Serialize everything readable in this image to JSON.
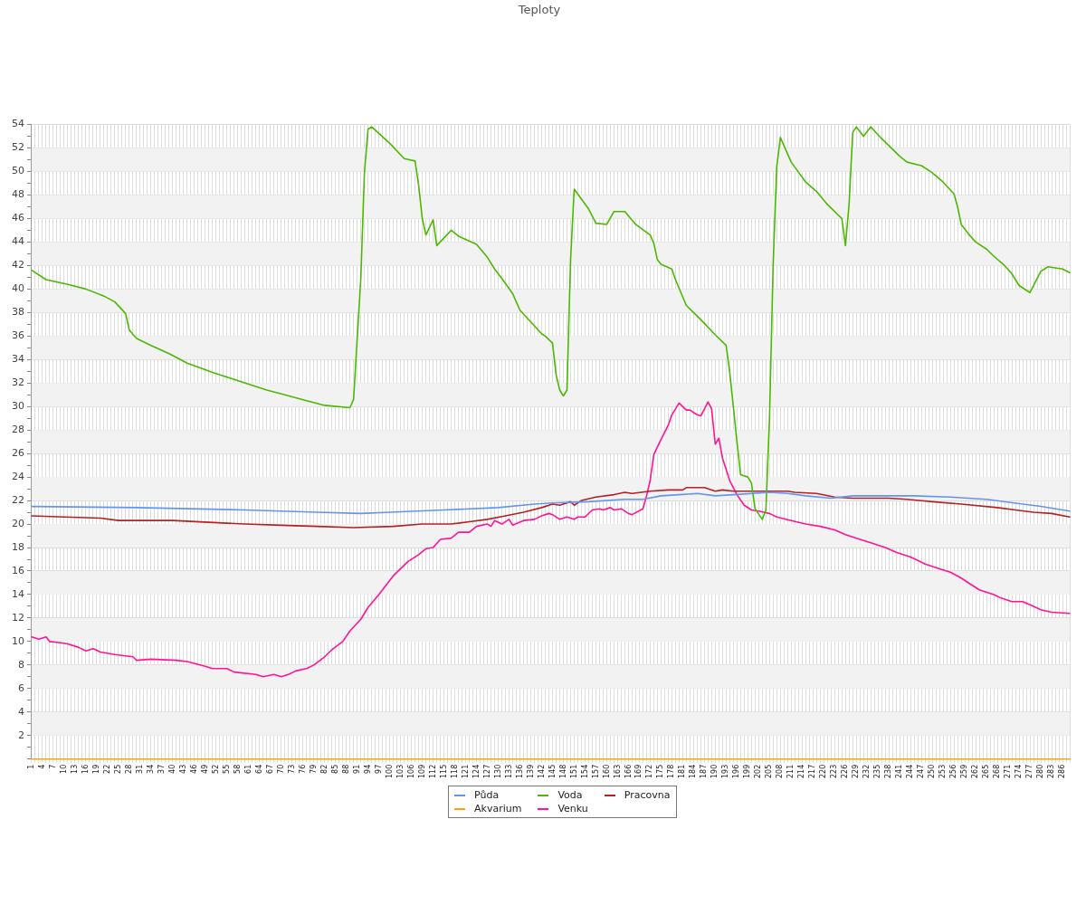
{
  "chart_data": {
    "type": "line",
    "title": "Teploty",
    "marker": "none",
    "grid": true,
    "legend": "bottom",
    "xlim": [
      1,
      288
    ],
    "xticks": [
      1,
      {
        "value": 2,
        "label": null
      },
      {
        "value": 3,
        "label": null
      },
      4,
      {
        "value": 5,
        "label": null
      },
      {
        "value": 6,
        "label": null
      },
      7,
      {
        "value": 8,
        "label": null
      },
      {
        "value": 9,
        "label": null
      },
      10,
      {
        "value": 11,
        "label": null
      },
      {
        "value": 12,
        "label": null
      },
      13,
      {
        "value": 14,
        "label": null
      },
      {
        "value": 15,
        "label": null
      },
      16,
      {
        "value": 17,
        "label": null
      },
      {
        "value": 18,
        "label": null
      },
      19,
      {
        "value": 20,
        "label": null
      },
      {
        "value": 21,
        "label": null
      },
      22,
      {
        "value": 23,
        "label": null
      },
      {
        "value": 24,
        "label": null
      },
      25,
      {
        "value": 26,
        "label": null
      },
      {
        "value": 27,
        "label": null
      },
      28,
      {
        "value": 29,
        "label": null
      },
      {
        "value": 30,
        "label": null
      },
      31,
      {
        "value": 32,
        "label": null
      },
      {
        "value": 33,
        "label": null
      },
      34,
      {
        "value": 35,
        "label": null
      },
      {
        "value": 36,
        "label": null
      },
      37,
      {
        "value": 38,
        "label": null
      },
      {
        "value": 39,
        "label": null
      },
      40,
      {
        "value": 41,
        "label": null
      },
      {
        "value": 42,
        "label": null
      },
      43,
      {
        "value": 44,
        "label": null
      },
      {
        "value": 45,
        "label": null
      },
      46,
      {
        "value": 47,
        "label": null
      },
      {
        "value": 48,
        "label": null
      },
      49,
      {
        "value": 50,
        "label": null
      },
      {
        "value": 51,
        "label": null
      },
      52,
      {
        "value": 53,
        "label": null
      },
      {
        "value": 54,
        "label": null
      },
      55,
      {
        "value": 56,
        "label": null
      },
      {
        "value": 57,
        "label": null
      },
      58,
      {
        "value": 59,
        "label": null
      },
      {
        "value": 60,
        "label": null
      },
      61,
      {
        "value": 62,
        "label": null
      },
      {
        "value": 63,
        "label": null
      },
      64,
      {
        "value": 65,
        "label": null
      },
      {
        "value": 66,
        "label": null
      },
      67,
      {
        "value": 68,
        "label": null
      },
      {
        "value": 69,
        "label": null
      },
      70,
      {
        "value": 71,
        "label": null
      },
      {
        "value": 72,
        "label": null
      },
      73,
      {
        "value": 74,
        "label": null
      },
      {
        "value": 75,
        "label": null
      },
      76,
      {
        "value": 77,
        "label": null
      },
      {
        "value": 78,
        "label": null
      },
      79,
      {
        "value": 80,
        "label": null
      },
      {
        "value": 81,
        "label": null
      },
      82,
      {
        "value": 83,
        "label": null
      },
      {
        "value": 84,
        "label": null
      },
      85,
      {
        "value": 86,
        "label": null
      },
      {
        "value": 87,
        "label": null
      },
      88,
      {
        "value": 89,
        "label": null
      },
      {
        "value": 90,
        "label": null
      },
      91,
      {
        "value": 92,
        "label": null
      },
      {
        "value": 93,
        "label": null
      },
      94,
      {
        "value": 95,
        "label": null
      },
      {
        "value": 96,
        "label": null
      },
      97,
      {
        "value": 98,
        "label": null
      },
      {
        "value": 99,
        "label": null
      },
      100,
      {
        "value": 101,
        "label": null
      },
      {
        "value": 102,
        "label": null
      },
      103,
      {
        "value": 104,
        "label": null
      },
      {
        "value": 105,
        "label": null
      },
      106,
      {
        "value": 107,
        "label": null
      },
      {
        "value": 108,
        "label": null
      },
      109,
      {
        "value": 110,
        "label": null
      },
      {
        "value": 111,
        "label": null
      },
      112,
      {
        "value": 113,
        "label": null
      },
      {
        "value": 114,
        "label": null
      },
      115,
      {
        "value": 116,
        "label": null
      },
      {
        "value": 117,
        "label": null
      },
      118,
      {
        "value": 119,
        "label": null
      },
      {
        "value": 120,
        "label": null
      },
      121,
      {
        "value": 122,
        "label": null
      },
      {
        "value": 123,
        "label": null
      },
      124,
      {
        "value": 125,
        "label": null
      },
      {
        "value": 126,
        "label": null
      },
      127,
      {
        "value": 128,
        "label": null
      },
      {
        "value": 129,
        "label": null
      },
      130,
      {
        "value": 131,
        "label": null
      },
      {
        "value": 132,
        "label": null
      },
      133,
      {
        "value": 134,
        "label": null
      },
      {
        "value": 135,
        "label": null
      },
      136,
      {
        "value": 137,
        "label": null
      },
      {
        "value": 138,
        "label": null
      },
      139,
      {
        "value": 140,
        "label": null
      },
      {
        "value": 141,
        "label": null
      },
      142,
      {
        "value": 143,
        "label": null
      },
      {
        "value": 144,
        "label": null
      },
      145,
      {
        "value": 146,
        "label": null
      },
      {
        "value": 147,
        "label": null
      },
      148,
      {
        "value": 149,
        "label": null
      },
      {
        "value": 150,
        "label": null
      },
      151,
      {
        "value": 152,
        "label": null
      },
      {
        "value": 153,
        "label": null
      },
      154,
      {
        "value": 155,
        "label": null
      },
      {
        "value": 156,
        "label": null
      },
      157,
      {
        "value": 158,
        "label": null
      },
      {
        "value": 159,
        "label": null
      },
      160,
      {
        "value": 161,
        "label": null
      },
      {
        "value": 162,
        "label": null
      },
      163,
      {
        "value": 164,
        "label": null
      },
      {
        "value": 165,
        "label": null
      },
      166,
      {
        "value": 167,
        "label": null
      },
      {
        "value": 168,
        "label": null
      },
      169,
      {
        "value": 170,
        "label": null
      },
      {
        "value": 171,
        "label": null
      },
      172,
      {
        "value": 173,
        "label": null
      },
      {
        "value": 174,
        "label": null
      },
      175,
      {
        "value": 176,
        "label": null
      },
      {
        "value": 177,
        "label": null
      },
      178,
      {
        "value": 179,
        "label": null
      },
      {
        "value": 180,
        "label": null
      },
      181,
      {
        "value": 182,
        "label": null
      },
      {
        "value": 183,
        "label": null
      },
      184,
      {
        "value": 185,
        "label": null
      },
      {
        "value": 186,
        "label": null
      },
      187,
      {
        "value": 188,
        "label": null
      },
      {
        "value": 189,
        "label": null
      },
      190,
      {
        "value": 191,
        "label": null
      },
      {
        "value": 192,
        "label": null
      },
      193,
      {
        "value": 194,
        "label": null
      },
      {
        "value": 195,
        "label": null
      },
      196,
      {
        "value": 197,
        "label": null
      },
      {
        "value": 198,
        "label": null
      },
      199,
      {
        "value": 200,
        "label": null
      },
      {
        "value": 201,
        "label": null
      },
      202,
      {
        "value": 203,
        "label": null
      },
      {
        "value": 204,
        "label": null
      },
      205,
      {
        "value": 206,
        "label": null
      },
      {
        "value": 207,
        "label": null
      },
      208,
      {
        "value": 209,
        "label": null
      },
      {
        "value": 210,
        "label": null
      },
      211,
      {
        "value": 212,
        "label": null
      },
      {
        "value": 213,
        "label": null
      },
      214,
      {
        "value": 215,
        "label": null
      },
      {
        "value": 216,
        "label": null
      },
      217,
      {
        "value": 218,
        "label": null
      },
      {
        "value": 219,
        "label": null
      },
      220,
      {
        "value": 221,
        "label": null
      },
      {
        "value": 222,
        "label": null
      },
      223,
      {
        "value": 224,
        "label": null
      },
      {
        "value": 225,
        "label": null
      },
      226,
      {
        "value": 227,
        "label": null
      },
      {
        "value": 228,
        "label": null
      },
      229,
      {
        "value": 230,
        "label": null
      },
      {
        "value": 231,
        "label": null
      },
      232,
      {
        "value": 233,
        "label": null
      },
      {
        "value": 234,
        "label": null
      },
      235,
      {
        "value": 236,
        "label": null
      },
      {
        "value": 237,
        "label": null
      },
      238,
      {
        "value": 239,
        "label": null
      },
      {
        "value": 240,
        "label": null
      },
      241,
      {
        "value": 242,
        "label": null
      },
      {
        "value": 243,
        "label": null
      },
      244,
      {
        "value": 245,
        "label": null
      },
      {
        "value": 246,
        "label": null
      },
      247,
      {
        "value": 248,
        "label": null
      },
      {
        "value": 249,
        "label": null
      },
      250,
      {
        "value": 251,
        "label": null
      },
      {
        "value": 252,
        "label": null
      },
      253,
      {
        "value": 254,
        "label": null
      },
      {
        "value": 255,
        "label": null
      },
      256,
      {
        "value": 257,
        "label": null
      },
      {
        "value": 258,
        "label": null
      },
      259,
      {
        "value": 260,
        "label": null
      },
      {
        "value": 261,
        "label": null
      },
      262,
      {
        "value": 263,
        "label": null
      },
      {
        "value": 264,
        "label": null
      },
      265,
      {
        "value": 266,
        "label": null
      },
      {
        "value": 267,
        "label": null
      },
      268,
      {
        "value": 269,
        "label": null
      },
      {
        "value": 270,
        "label": null
      },
      271,
      {
        "value": 272,
        "label": null
      },
      {
        "value": 273,
        "label": null
      },
      274,
      {
        "value": 275,
        "label": null
      },
      {
        "value": 276,
        "label": null
      },
      277,
      {
        "value": 278,
        "label": null
      },
      {
        "value": 279,
        "label": null
      },
      280,
      {
        "value": 281,
        "label": null
      },
      {
        "value": 282,
        "label": null
      },
      283,
      {
        "value": 284,
        "label": null
      },
      {
        "value": 285,
        "label": null
      },
      286,
      {
        "value": 287,
        "label": null
      },
      {
        "value": 288,
        "label": null
      }
    ],
    "ylim": [
      0,
      54
    ],
    "yticks": [
      {
        "value": 0,
        "label": null
      },
      {
        "value": 1,
        "label": null
      },
      2,
      {
        "value": 3,
        "label": null
      },
      4,
      {
        "value": 5,
        "label": null
      },
      6,
      {
        "value": 7,
        "label": null
      },
      8,
      {
        "value": 9,
        "label": null
      },
      10,
      {
        "value": 11,
        "label": null
      },
      12,
      {
        "value": 13,
        "label": null
      },
      14,
      {
        "value": 15,
        "label": null
      },
      16,
      {
        "value": 17,
        "label": null
      },
      18,
      {
        "value": 19,
        "label": null
      },
      20,
      {
        "value": 21,
        "label": null
      },
      22,
      {
        "value": 23,
        "label": null
      },
      24,
      {
        "value": 25,
        "label": null
      },
      26,
      {
        "value": 27,
        "label": null
      },
      28,
      {
        "value": 29,
        "label": null
      },
      30,
      {
        "value": 31,
        "label": null
      },
      32,
      {
        "value": 33,
        "label": null
      },
      34,
      {
        "value": 35,
        "label": null
      },
      36,
      {
        "value": 37,
        "label": null
      },
      38,
      {
        "value": 39,
        "label": null
      },
      40,
      {
        "value": 41,
        "label": null
      },
      42,
      {
        "value": 43,
        "label": null
      },
      44,
      {
        "value": 45,
        "label": null
      },
      46,
      {
        "value": 47,
        "label": null
      },
      48,
      {
        "value": 49,
        "label": null
      },
      50,
      {
        "value": 51,
        "label": null
      },
      52,
      {
        "value": 53,
        "label": null
      },
      54
    ],
    "series": [
      {
        "name": "Půda",
        "color": "#6495ed",
        "x": [
          1,
          30,
          60,
          70,
          80,
          92,
          100,
          115,
          130,
          140,
          145,
          155,
          165,
          170,
          175,
          180,
          185,
          190,
          195,
          205,
          210,
          215,
          222,
          228,
          245,
          255,
          265,
          275,
          280,
          288
        ],
        "values": [
          21.5,
          21.4,
          21.2,
          21.1,
          21.0,
          20.9,
          21.0,
          21.2,
          21.4,
          21.7,
          21.8,
          21.9,
          22.1,
          22.1,
          22.4,
          22.5,
          22.6,
          22.4,
          22.5,
          22.7,
          22.6,
          22.4,
          22.2,
          22.4,
          22.4,
          22.3,
          22.1,
          21.7,
          21.5,
          21.1
        ]
      },
      {
        "name": "Voda",
        "color": "#4cb800",
        "x": [
          1,
          5,
          11,
          16,
          21,
          24,
          27,
          28,
          30,
          34,
          39,
          44,
          51,
          56,
          61,
          66,
          71,
          77,
          82,
          89,
          90,
          92,
          93,
          94,
          95,
          100,
          104,
          107,
          108,
          109,
          110,
          112,
          113,
          117,
          119,
          124,
          127,
          129,
          131,
          134,
          136,
          139,
          142,
          143,
          145,
          146,
          147,
          148,
          149,
          150,
          151,
          155,
          157,
          160,
          162,
          165,
          168,
          172,
          173,
          174,
          175,
          178,
          179,
          182,
          186,
          190,
          193,
          194,
          195,
          196,
          197,
          199,
          200,
          201,
          203,
          204,
          205,
          206,
          207,
          208,
          211,
          215,
          218,
          221,
          225,
          226,
          227,
          228,
          229,
          231,
          233,
          236,
          241,
          243,
          247,
          250,
          253,
          256,
          257,
          258,
          260,
          262,
          265,
          267,
          270,
          272,
          274,
          277,
          280,
          282,
          286,
          288
        ],
        "values": [
          41.6,
          40.8,
          40.4,
          40.0,
          39.4,
          38.9,
          37.9,
          36.5,
          35.8,
          35.2,
          34.5,
          33.7,
          32.9,
          32.4,
          31.9,
          31.4,
          31.0,
          30.5,
          30.1,
          29.9,
          30.6,
          40.9,
          49.9,
          53.6,
          53.8,
          52.4,
          51.1,
          50.9,
          48.8,
          46.0,
          44.6,
          45.9,
          43.7,
          45.0,
          44.5,
          43.8,
          42.7,
          41.7,
          40.9,
          39.6,
          38.2,
          37.2,
          36.2,
          36.0,
          35.4,
          32.7,
          31.4,
          30.9,
          31.4,
          42.5,
          48.5,
          46.8,
          45.6,
          45.5,
          46.6,
          46.6,
          45.5,
          44.6,
          43.9,
          42.5,
          42.1,
          41.7,
          40.8,
          38.6,
          37.4,
          36.1,
          35.2,
          32.9,
          30.0,
          27.0,
          24.2,
          24.0,
          23.5,
          21.3,
          20.4,
          21.2,
          29.0,
          42.0,
          50.4,
          52.9,
          50.8,
          49.1,
          48.3,
          47.2,
          46.0,
          43.7,
          47.2,
          53.3,
          53.8,
          53.0,
          53.8,
          52.8,
          51.3,
          50.8,
          50.5,
          49.9,
          49.1,
          48.1,
          47.0,
          45.5,
          44.7,
          44.0,
          43.4,
          42.8,
          42.0,
          41.3,
          40.3,
          39.7,
          41.5,
          41.9,
          41.7,
          41.4
        ]
      },
      {
        "name": "Pracovna",
        "color": "#b22222",
        "x": [
          1,
          10,
          20,
          25,
          40,
          60,
          70,
          80,
          90,
          101,
          109,
          117,
          122,
          127,
          132,
          137,
          142,
          145,
          147,
          150,
          151,
          153,
          157,
          162,
          165,
          167,
          172,
          177,
          181,
          182,
          187,
          190,
          192,
          195,
          205,
          210,
          212,
          218,
          223,
          228,
          238,
          243,
          250,
          258,
          268,
          273,
          278,
          283,
          288
        ],
        "values": [
          20.7,
          20.6,
          20.5,
          20.3,
          20.3,
          20.0,
          19.9,
          19.8,
          19.7,
          19.8,
          20.0,
          20.0,
          20.2,
          20.4,
          20.7,
          21.0,
          21.4,
          21.7,
          21.6,
          21.9,
          21.6,
          22.0,
          22.3,
          22.5,
          22.7,
          22.6,
          22.8,
          22.9,
          22.9,
          23.1,
          23.1,
          22.8,
          22.9,
          22.8,
          22.8,
          22.8,
          22.7,
          22.6,
          22.3,
          22.2,
          22.2,
          22.1,
          21.9,
          21.7,
          21.4,
          21.2,
          21.0,
          20.9,
          20.6
        ]
      },
      {
        "name": "Akvarium",
        "color": "#ffa500",
        "x": [
          1,
          288
        ],
        "values": [
          0,
          0
        ]
      },
      {
        "name": "Venku",
        "color": "#ff1493",
        "x": [
          1,
          3,
          5,
          6,
          9,
          11,
          14,
          16,
          18,
          20,
          24,
          29,
          30,
          34,
          41,
          44,
          49,
          51,
          55,
          57,
          63,
          65,
          68,
          70,
          72,
          74,
          77,
          79,
          82,
          84,
          87,
          89,
          92,
          94,
          97,
          99,
          101,
          103,
          105,
          108,
          110,
          112,
          114,
          117,
          119,
          122,
          124,
          127,
          128,
          129,
          131,
          133,
          134,
          137,
          140,
          142,
          144,
          145,
          147,
          149,
          151,
          152,
          154,
          156,
          158,
          159,
          161,
          162,
          164,
          166,
          167,
          170,
          171,
          172,
          173,
          175,
          177,
          178,
          180,
          182,
          183,
          184,
          185,
          186,
          187,
          188,
          189,
          190,
          191,
          192,
          194,
          196,
          198,
          200,
          202,
          205,
          207,
          211,
          215,
          219,
          223,
          226,
          230,
          233,
          237,
          240,
          244,
          248,
          252,
          255,
          258,
          260,
          263,
          267,
          269,
          272,
          275,
          278,
          280,
          283,
          288
        ],
        "values": [
          10.4,
          10.2,
          10.4,
          10.0,
          9.9,
          9.8,
          9.5,
          9.2,
          9.4,
          9.1,
          8.9,
          8.7,
          8.4,
          8.5,
          8.4,
          8.3,
          7.9,
          7.7,
          7.7,
          7.4,
          7.2,
          7.0,
          7.2,
          7.0,
          7.2,
          7.5,
          7.7,
          8.0,
          8.7,
          9.3,
          10.0,
          10.9,
          11.9,
          12.9,
          14.0,
          14.8,
          15.6,
          16.2,
          16.8,
          17.4,
          17.9,
          18.0,
          18.7,
          18.8,
          19.3,
          19.3,
          19.8,
          20.0,
          19.8,
          20.3,
          20.0,
          20.4,
          19.9,
          20.3,
          20.4,
          20.7,
          20.9,
          20.8,
          20.4,
          20.6,
          20.4,
          20.6,
          20.6,
          21.2,
          21.3,
          21.2,
          21.4,
          21.2,
          21.3,
          20.9,
          20.8,
          21.3,
          22.4,
          23.7,
          25.9,
          27.2,
          28.4,
          29.3,
          30.3,
          29.7,
          29.7,
          29.5,
          29.3,
          29.2,
          29.8,
          30.4,
          29.8,
          26.8,
          27.3,
          25.6,
          23.7,
          22.5,
          21.6,
          21.2,
          21.1,
          20.9,
          20.6,
          20.3,
          20.0,
          19.8,
          19.5,
          19.1,
          18.7,
          18.4,
          18.0,
          17.6,
          17.2,
          16.6,
          16.2,
          15.9,
          15.4,
          15.0,
          14.4,
          14.0,
          13.7,
          13.4,
          13.4,
          13.0,
          12.7,
          12.5,
          12.4
        ]
      }
    ]
  }
}
